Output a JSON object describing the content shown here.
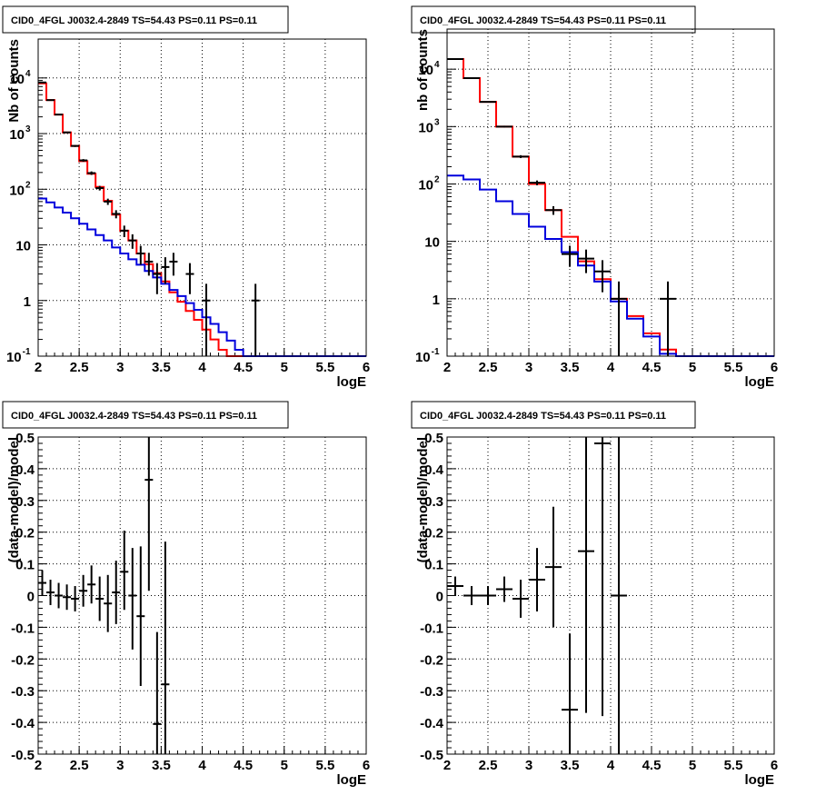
{
  "chart_data": [
    {
      "type": "line",
      "title": "CID0_4FGL J0032.4-2849 TS=54.43 PS=0.11 PS=0.11",
      "xlabel": "logE",
      "ylabel": "Nb of counts",
      "log_y": true,
      "grid": true,
      "xlim": [
        2,
        6
      ],
      "ylim": [
        0.1,
        50000
      ],
      "xticks": [
        "2",
        "2.5",
        "3",
        "3.5",
        "4",
        "4.5",
        "5",
        "5.5",
        "6"
      ],
      "yticks": [
        "10^-1",
        "1",
        "10",
        "10^2",
        "10^3",
        "10^4"
      ],
      "series": [
        {
          "kind": "histogram",
          "color": "#ff0000",
          "edges": [
            2.0,
            2.1,
            2.2,
            2.3,
            2.4,
            2.5,
            2.6,
            2.7,
            2.8,
            2.9,
            3.0,
            3.1,
            3.2,
            3.3,
            3.4,
            3.5,
            3.6,
            3.7,
            3.8,
            3.9,
            4.0,
            4.1,
            4.2,
            4.3,
            4.4,
            4.5,
            4.6,
            4.7,
            4.8,
            4.9,
            5.0,
            5.1,
            5.2,
            5.3,
            5.4,
            5.5,
            5.6,
            5.7,
            5.8,
            5.9,
            6.0
          ],
          "values": [
            8000,
            4000,
            2200,
            1050,
            600,
            320,
            190,
            110,
            62,
            35,
            18,
            12,
            7,
            4.5,
            3.1,
            2.2,
            1.4,
            0.95,
            0.65,
            0.45,
            0.3,
            0.2,
            0.13,
            0.1,
            0.1,
            0.1,
            0.1,
            0.1,
            0.1,
            0.1,
            0.1,
            0.1,
            0.1,
            0.1,
            0.1,
            0.1,
            0.1,
            0.1,
            0.1,
            0.1
          ]
        },
        {
          "kind": "histogram",
          "color": "#0000dd",
          "edges": [
            2.0,
            2.1,
            2.2,
            2.3,
            2.4,
            2.5,
            2.6,
            2.7,
            2.8,
            2.9,
            3.0,
            3.1,
            3.2,
            3.3,
            3.4,
            3.5,
            3.6,
            3.7,
            3.8,
            3.9,
            4.0,
            4.1,
            4.2,
            4.3,
            4.4,
            4.5,
            4.6,
            4.7,
            4.8,
            4.9,
            5.0,
            5.1,
            5.2,
            5.3,
            5.4,
            5.5,
            5.6,
            5.7,
            5.8,
            5.9,
            6.0
          ],
          "values": [
            68,
            58,
            47,
            38,
            30,
            24,
            19,
            15,
            12,
            9,
            7,
            5.5,
            4.4,
            3.4,
            2.6,
            2,
            1.55,
            1.2,
            0.9,
            0.68,
            0.5,
            0.38,
            0.27,
            0.19,
            0.13,
            0.1,
            0.1,
            0.1,
            0.1,
            0.1,
            0.1,
            0.1,
            0.1,
            0.1,
            0.1,
            0.1,
            0.1,
            0.1,
            0.1,
            0.1
          ]
        },
        {
          "kind": "data",
          "color": "#000000",
          "half_width": 0.05,
          "x": [
            2.05,
            2.15,
            2.25,
            2.35,
            2.45,
            2.55,
            2.65,
            2.75,
            2.85,
            2.95,
            3.05,
            3.15,
            3.25,
            3.35,
            3.45,
            3.55,
            3.65,
            3.85,
            4.05,
            4.65
          ],
          "y": [
            8300,
            4000,
            2200,
            1050,
            600,
            330,
            195,
            105,
            60,
            36,
            18,
            12,
            7,
            5,
            3,
            4,
            5,
            3,
            1,
            1
          ],
          "err_low": [
            91,
            63,
            47,
            32,
            24,
            18,
            14,
            10,
            7.7,
            6,
            4.2,
            3.5,
            2.6,
            2.2,
            1.7,
            2,
            2.2,
            1.7,
            1,
            1
          ],
          "err_high": [
            91,
            63,
            47,
            32,
            24,
            18,
            14,
            10,
            7.7,
            6,
            4.2,
            3.5,
            2.6,
            2.2,
            1.7,
            2,
            2.2,
            1.7,
            1,
            1
          ]
        }
      ]
    },
    {
      "type": "line",
      "title": "CID0_4FGL J0032.4-2849 TS=54.43 PS=0.11 PS=0.11",
      "xlabel": "logE",
      "ylabel": "nb of counts",
      "log_y": true,
      "grid": true,
      "xlim": [
        2,
        6
      ],
      "ylim": [
        0.1,
        50000
      ],
      "xticks": [
        "2",
        "2.5",
        "3",
        "3.5",
        "4",
        "4.5",
        "5",
        "5.5",
        "6"
      ],
      "yticks": [
        "10^-1",
        "1",
        "10",
        "10^2",
        "10^3",
        "10^4"
      ],
      "series": [
        {
          "kind": "histogram",
          "color": "#ff0000",
          "edges": [
            2.0,
            2.2,
            2.4,
            2.6,
            2.8,
            3.0,
            3.2,
            3.4,
            3.6,
            3.8,
            4.0,
            4.2,
            4.4,
            4.6,
            4.8,
            5.0,
            5.2,
            5.4,
            5.6,
            5.8,
            6.0
          ],
          "values": [
            15000,
            7000,
            2700,
            1000,
            300,
            100,
            35,
            12,
            4.5,
            2.2,
            1,
            0.5,
            0.25,
            0.13,
            0.1,
            0.1,
            0.1,
            0.1,
            0.1,
            0.1
          ]
        },
        {
          "kind": "histogram",
          "color": "#0000dd",
          "edges": [
            2.0,
            2.2,
            2.4,
            2.6,
            2.8,
            3.0,
            3.2,
            3.4,
            3.6,
            3.8,
            4.0,
            4.2,
            4.4,
            4.6,
            4.8,
            5.0,
            5.2,
            5.4,
            5.6,
            5.8,
            6.0
          ],
          "values": [
            140,
            120,
            80,
            50,
            30,
            18,
            11,
            6.5,
            3.8,
            2,
            0.9,
            0.45,
            0.22,
            0.11,
            0.1,
            0.1,
            0.1,
            0.1,
            0.1,
            0.1
          ]
        },
        {
          "kind": "data",
          "color": "#000000",
          "half_width": 0.1,
          "x": [
            2.1,
            2.3,
            2.5,
            2.7,
            2.9,
            3.1,
            3.3,
            3.5,
            3.7,
            3.9,
            4.1,
            4.7
          ],
          "y": [
            15000,
            7000,
            2700,
            1000,
            300,
            105,
            35,
            6,
            5,
            3,
            1,
            1
          ],
          "err_low": [
            122,
            84,
            52,
            32,
            17,
            10,
            6,
            2.4,
            2.2,
            1.7,
            1,
            1
          ],
          "err_high": [
            122,
            84,
            52,
            32,
            17,
            10,
            6,
            2.4,
            2.2,
            1.7,
            1,
            1
          ]
        }
      ]
    },
    {
      "type": "scatter",
      "title": "CID0_4FGL J0032.4-2849 TS=54.43 PS=0.11 PS=0.11",
      "xlabel": "logE",
      "ylabel": "(data-model)/model",
      "grid": true,
      "xlim": [
        2,
        6
      ],
      "ylim": [
        -0.5,
        0.5
      ],
      "xticks": [
        "2",
        "2.5",
        "3",
        "3.5",
        "4",
        "4.5",
        "5",
        "5.5",
        "6"
      ],
      "yticks": [
        "-0.5",
        "-0.4",
        "-0.3",
        "-0.2",
        "-0.1",
        "0",
        "0.1",
        "0.2",
        "0.3",
        "0.4",
        "0.5"
      ],
      "series": [
        {
          "kind": "data",
          "color": "#000000",
          "half_width": 0.05,
          "x": [
            2.05,
            2.15,
            2.25,
            2.35,
            2.45,
            2.55,
            2.65,
            2.75,
            2.85,
            2.95,
            3.05,
            3.15,
            3.25,
            3.35,
            3.45,
            3.55
          ],
          "y": [
            0.04,
            0.01,
            0.0,
            -0.005,
            -0.01,
            0.015,
            0.035,
            -0.01,
            -0.025,
            0.01,
            0.075,
            0.0,
            -0.065,
            0.365,
            -0.405,
            -0.28
          ],
          "err_low": [
            0.04,
            0.04,
            0.04,
            0.04,
            0.04,
            0.05,
            0.06,
            0.07,
            0.09,
            0.1,
            0.12,
            0.17,
            0.22,
            0.35,
            0.29,
            0.45
          ],
          "err_high": [
            0.04,
            0.04,
            0.04,
            0.04,
            0.04,
            0.05,
            0.06,
            0.07,
            0.09,
            0.1,
            0.13,
            0.15,
            0.22,
            0.6,
            0.29,
            0.45
          ]
        }
      ]
    },
    {
      "type": "scatter",
      "title": "CID0_4FGL J0032.4-2849 TS=54.43 PS=0.11 PS=0.11",
      "xlabel": "logE",
      "ylabel": "(data-model)/model",
      "grid": true,
      "xlim": [
        2,
        6
      ],
      "ylim": [
        -0.5,
        0.5
      ],
      "xticks": [
        "2",
        "2.5",
        "3",
        "3.5",
        "4",
        "4.5",
        "5",
        "5.5",
        "6"
      ],
      "yticks": [
        "-0.5",
        "-0.4",
        "-0.3",
        "-0.2",
        "-0.1",
        "0",
        "0.1",
        "0.2",
        "0.3",
        "0.4",
        "0.5"
      ],
      "series": [
        {
          "kind": "data",
          "color": "#000000",
          "half_width": 0.1,
          "x": [
            2.1,
            2.3,
            2.5,
            2.7,
            2.9,
            3.1,
            3.3,
            3.5,
            3.7,
            3.9,
            4.1
          ],
          "y": [
            0.03,
            0.0,
            0.0,
            0.02,
            -0.01,
            0.05,
            0.09,
            -0.36,
            0.14,
            0.48,
            0.0
          ],
          "err_low": [
            0.03,
            0.03,
            0.03,
            0.04,
            0.06,
            0.1,
            0.19,
            0.24,
            0.51,
            0.86,
            1.0
          ],
          "err_high": [
            0.03,
            0.03,
            0.03,
            0.04,
            0.06,
            0.1,
            0.19,
            0.24,
            0.51,
            0.86,
            1.0
          ]
        }
      ]
    }
  ]
}
